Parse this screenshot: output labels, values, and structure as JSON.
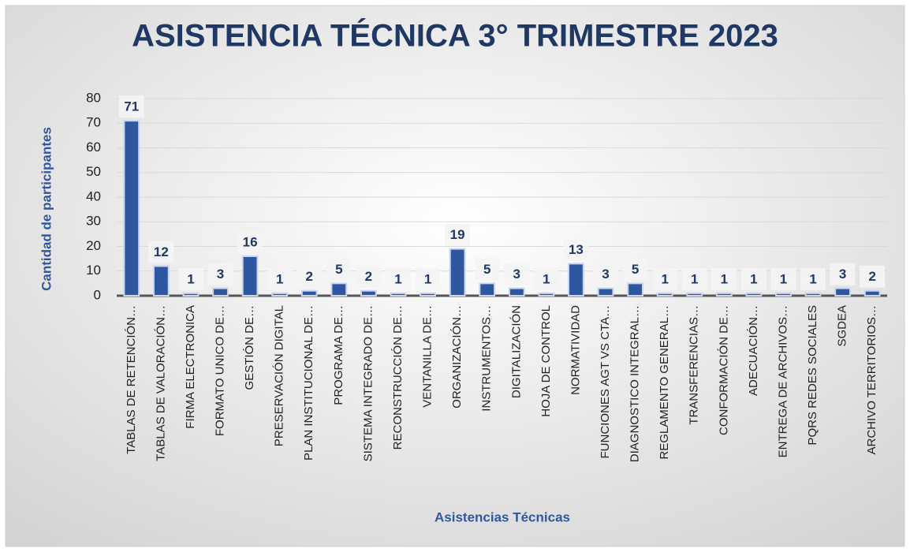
{
  "chart_data": {
    "type": "bar",
    "title": "ASISTENCIA TÉCNICA 3° TRIMESTRE 2023",
    "y_label": "Cantidad de participantes",
    "x_label": "Asistencias Técnicas",
    "categories": [
      "TABLAS DE RETENCIÓN…",
      "TABLAS DE VALORACIÓN…",
      "FIRMA ELECTRONICA",
      "FORMATO UNICO DE…",
      "GESTIÓN DE…",
      "PRESERVACIÓN DIGITAL",
      "PLAN INSTITUCIONAL DE…",
      "PROGRAMA DE…",
      "SISTEMA INTEGRADO DE…",
      "RECONSTRUCCIÓN DE…",
      "VENTANILLA DE…",
      "ORGANIZACIÓN…",
      "INSTRUMENTOS…",
      "DIGITALIZACIÓN",
      "HOJA DE CONTROL",
      "NORMATIVIDAD",
      "FUNCIONES AGT VS CTA…",
      "DIAGNOSTICO INTEGRAL…",
      "REGLAMENTO GENERAL…",
      "TRANSFERENCIAS…",
      "CONFORMACIÓN DE…",
      "ADECUACIÓN…",
      "ENTREGA DE ARCHIVOS…",
      "PQRS REDES SOCIALES",
      "SGDEA",
      "ARCHIVO TERRITORIOS…"
    ],
    "values": [
      71,
      12,
      1,
      3,
      16,
      1,
      2,
      5,
      2,
      1,
      1,
      19,
      5,
      3,
      1,
      13,
      3,
      5,
      1,
      1,
      1,
      1,
      1,
      1,
      3,
      2
    ],
    "color": "#2e57a0",
    "ylim": [
      0,
      80
    ],
    "yticks": [
      0,
      10,
      20,
      30,
      40,
      50,
      60,
      70,
      80
    ],
    "grid": true
  }
}
